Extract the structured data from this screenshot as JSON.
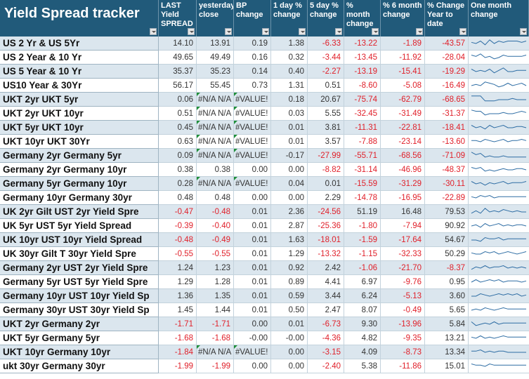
{
  "title": "Yield Spread tracker",
  "headers": [
    "LAST Yield SPREAD",
    "yesterday close",
    "BP change",
    "1 day % change",
    "5 day % change",
    "% month change",
    "% 6 month change",
    "% Change Year to date",
    "One month change"
  ],
  "colors": {
    "header_bg": "#215a7a",
    "row_dark": "#dbe6ee",
    "row_light": "#ffffff",
    "negative": "#e0202a",
    "sparkline": "#2e6da4"
  },
  "rows": [
    {
      "name": "US 2 Yr & US 5Yr",
      "vals": [
        "14.10",
        "13.91",
        "0.19",
        "1.38",
        "-6.33",
        "-13.22",
        "-1.89",
        "-43.57"
      ],
      "spark": [
        5,
        4,
        6,
        3,
        7,
        4,
        6,
        5,
        6,
        6,
        6,
        5,
        6
      ]
    },
    {
      "name": "US 2 Year & 10 Yr",
      "vals": [
        "49.65",
        "49.49",
        "0.16",
        "0.32",
        "-3.44",
        "-13.45",
        "-11.92",
        "-28.04"
      ],
      "spark": [
        6,
        5,
        7,
        4,
        5,
        3,
        4,
        6,
        5,
        5,
        5,
        5,
        6
      ]
    },
    {
      "name": "US 5 Year & 10 Yr",
      "vals": [
        "35.37",
        "35.23",
        "0.14",
        "0.40",
        "-2.27",
        "-13.19",
        "-15.41",
        "-19.29"
      ],
      "spark": [
        6,
        4,
        5,
        4,
        6,
        3,
        5,
        7,
        4,
        4,
        5,
        5,
        5
      ]
    },
    {
      "name": "US10 Year & 30Yr",
      "vals": [
        "56.17",
        "55.45",
        "0.73",
        "1.31",
        "0.51",
        "-8.60",
        "-5.08",
        "-16.49"
      ],
      "spark": [
        4,
        5,
        4,
        7,
        6,
        5,
        3,
        4,
        6,
        4,
        5,
        6,
        4
      ]
    },
    {
      "name": "UKT 2yr UKT 5yr",
      "vals": [
        "0.06",
        "#N/A N/A",
        "#VALUE!",
        "0.18",
        "20.67",
        "-75.74",
        "-62.79",
        "-68.65"
      ],
      "spark": [
        7,
        7,
        7,
        3,
        3,
        3,
        4,
        4,
        4,
        5,
        4,
        4,
        4
      ]
    },
    {
      "name": "UKT 2yr UKT 10yr",
      "vals": [
        "0.51",
        "#N/A N/A",
        "#VALUE!",
        "0.03",
        "5.55",
        "-32.45",
        "-31.49",
        "-31.37"
      ],
      "spark": [
        7,
        6,
        6,
        3,
        4,
        4,
        4,
        5,
        4,
        4,
        5,
        6,
        5
      ]
    },
    {
      "name": "UKT 5yr UKT 10yr",
      "vals": [
        "0.45",
        "#N/A N/A",
        "#VALUE!",
        "0.01",
        "3.81",
        "-11.31",
        "-22.81",
        "-18.41"
      ],
      "spark": [
        6,
        4,
        5,
        3,
        6,
        4,
        5,
        6,
        4,
        4,
        5,
        5,
        4
      ]
    },
    {
      "name": "UKT 10yr UKT 30Yr",
      "vals": [
        "0.63",
        "#N/A N/A",
        "#VALUE!",
        "0.01",
        "3.57",
        "-7.88",
        "-23.14",
        "-13.60"
      ],
      "spark": [
        5,
        5,
        4,
        6,
        5,
        4,
        5,
        6,
        4,
        5,
        5,
        6,
        5
      ]
    },
    {
      "name": "Germany 2yr Germany 5yr",
      "vals": [
        "0.09",
        "#N/A N/A",
        "#VALUE!",
        "-0.17",
        "-27.99",
        "-55.71",
        "-68.56",
        "-71.09"
      ],
      "spark": [
        7,
        5,
        6,
        3,
        4,
        3,
        3,
        4,
        3,
        3,
        3,
        3,
        3
      ]
    },
    {
      "name": "Germany 2yr Germany 10yr",
      "vals": [
        "0.38",
        "0.38",
        "0.00",
        "0.00",
        "-8.82",
        "-31.14",
        "-46.96",
        "-48.37"
      ],
      "spark": [
        6,
        5,
        6,
        3,
        4,
        3,
        4,
        5,
        4,
        4,
        5,
        5,
        4
      ]
    },
    {
      "name": "Germany 5yr Germany 10yr",
      "vals": [
        "0.28",
        "#N/A N/A",
        "#VALUE!",
        "0.04",
        "0.01",
        "-15.59",
        "-31.29",
        "-30.11"
      ],
      "spark": [
        6,
        4,
        5,
        3,
        5,
        4,
        5,
        6,
        4,
        5,
        5,
        5,
        6
      ]
    },
    {
      "name": "Germany 10yr Germany 30yr",
      "vals": [
        "0.48",
        "0.48",
        "0.00",
        "0.00",
        "2.29",
        "-14.78",
        "-16.95",
        "-22.89"
      ],
      "spark": [
        5,
        4,
        6,
        5,
        6,
        4,
        5,
        5,
        5,
        5,
        5,
        5,
        5
      ]
    },
    {
      "name": "UK 2yr Gilt UST 2yr Yield Spre",
      "vals": [
        "-0.47",
        "-0.48",
        "0.01",
        "2.36",
        "-24.56",
        "51.19",
        "16.48",
        "79.53"
      ],
      "spark": [
        3,
        5,
        3,
        7,
        4,
        5,
        4,
        6,
        5,
        4,
        5,
        4,
        4
      ]
    },
    {
      "name": "UK 5yr UST 5yr Yield Spread",
      "vals": [
        "-0.39",
        "-0.40",
        "0.01",
        "2.87",
        "-25.36",
        "-1.80",
        "-7.94",
        "90.92"
      ],
      "spark": [
        4,
        5,
        3,
        6,
        4,
        5,
        6,
        4,
        5,
        4,
        5,
        5,
        4
      ]
    },
    {
      "name": "UK 10yr UST 10yr Yield Spread",
      "vals": [
        "-0.48",
        "-0.49",
        "0.01",
        "1.63",
        "-18.01",
        "-1.59",
        "-17.64",
        "54.67"
      ],
      "spark": [
        4,
        4,
        3,
        6,
        5,
        5,
        6,
        4,
        5,
        5,
        5,
        5,
        5
      ]
    },
    {
      "name": "UK 30yr Gilt T 30yr Yield Spre",
      "vals": [
        "-0.55",
        "-0.55",
        "0.01",
        "1.29",
        "-13.32",
        "-1.15",
        "-32.33",
        "50.29"
      ],
      "spark": [
        5,
        4,
        4,
        6,
        5,
        6,
        4,
        5,
        6,
        5,
        4,
        5,
        6
      ]
    },
    {
      "name": "Germany 2yr UST 2yr Yield Spre",
      "vals": [
        "1.24",
        "1.23",
        "0.01",
        "0.92",
        "2.42",
        "-1.06",
        "-21.70",
        "-8.37"
      ],
      "spark": [
        3,
        5,
        4,
        6,
        4,
        5,
        5,
        6,
        4,
        5,
        4,
        5,
        4
      ]
    },
    {
      "name": "Germany 5yr UST 5yr Yield Spre",
      "vals": [
        "1.29",
        "1.28",
        "0.01",
        "0.89",
        "4.41",
        "6.97",
        "-9.76",
        "0.95"
      ],
      "spark": [
        4,
        6,
        4,
        5,
        6,
        5,
        6,
        4,
        5,
        5,
        5,
        4,
        5
      ]
    },
    {
      "name": "Germany 10yr UST 10yr Yield Sp",
      "vals": [
        "1.36",
        "1.35",
        "0.01",
        "0.59",
        "3.44",
        "6.24",
        "-5.13",
        "3.60"
      ],
      "spark": [
        4,
        4,
        6,
        5,
        4,
        5,
        6,
        5,
        6,
        5,
        6,
        4,
        5
      ]
    },
    {
      "name": "Germany 30yr UST 30yr Yield Sp",
      "vals": [
        "1.45",
        "1.44",
        "0.01",
        "0.50",
        "2.47",
        "8.07",
        "-0.49",
        "5.65"
      ],
      "spark": [
        4,
        5,
        4,
        6,
        5,
        4,
        5,
        6,
        5,
        5,
        5,
        5,
        5
      ]
    },
    {
      "name": "UKT 2yr Germany 2yr",
      "vals": [
        "-1.71",
        "-1.71",
        "0.00",
        "0.01",
        "-6.73",
        "9.30",
        "-13.96",
        "5.84"
      ],
      "spark": [
        6,
        3,
        4,
        5,
        4,
        6,
        4,
        5,
        5,
        5,
        5,
        5,
        5
      ]
    },
    {
      "name": "UKT 5yr Germany 5yr",
      "vals": [
        "-1.68",
        "-1.68",
        "-0.00",
        "-0.00",
        "-4.36",
        "4.82",
        "-9.35",
        "13.21"
      ],
      "spark": [
        5,
        4,
        6,
        4,
        5,
        4,
        5,
        6,
        5,
        5,
        5,
        5,
        5
      ]
    },
    {
      "name": "UKT 10yr Germany 10yr",
      "vals": [
        "-1.84",
        "#N/A N/A",
        "#VALUE!",
        "0.00",
        "-3.15",
        "4.09",
        "-8.73",
        "13.34"
      ],
      "spark": [
        5,
        5,
        6,
        4,
        5,
        4,
        5,
        5,
        4,
        4,
        4,
        4,
        4
      ]
    },
    {
      "name": "ukt 30yr Germany 30yr",
      "vals": [
        "-1.99",
        "-1.99",
        "0.00",
        "0.00",
        "-2.40",
        "5.38",
        "-11.86",
        "15.01"
      ],
      "spark": [
        6,
        5,
        5,
        4,
        6,
        5,
        5,
        5,
        5,
        5,
        5,
        5,
        5
      ]
    }
  ]
}
